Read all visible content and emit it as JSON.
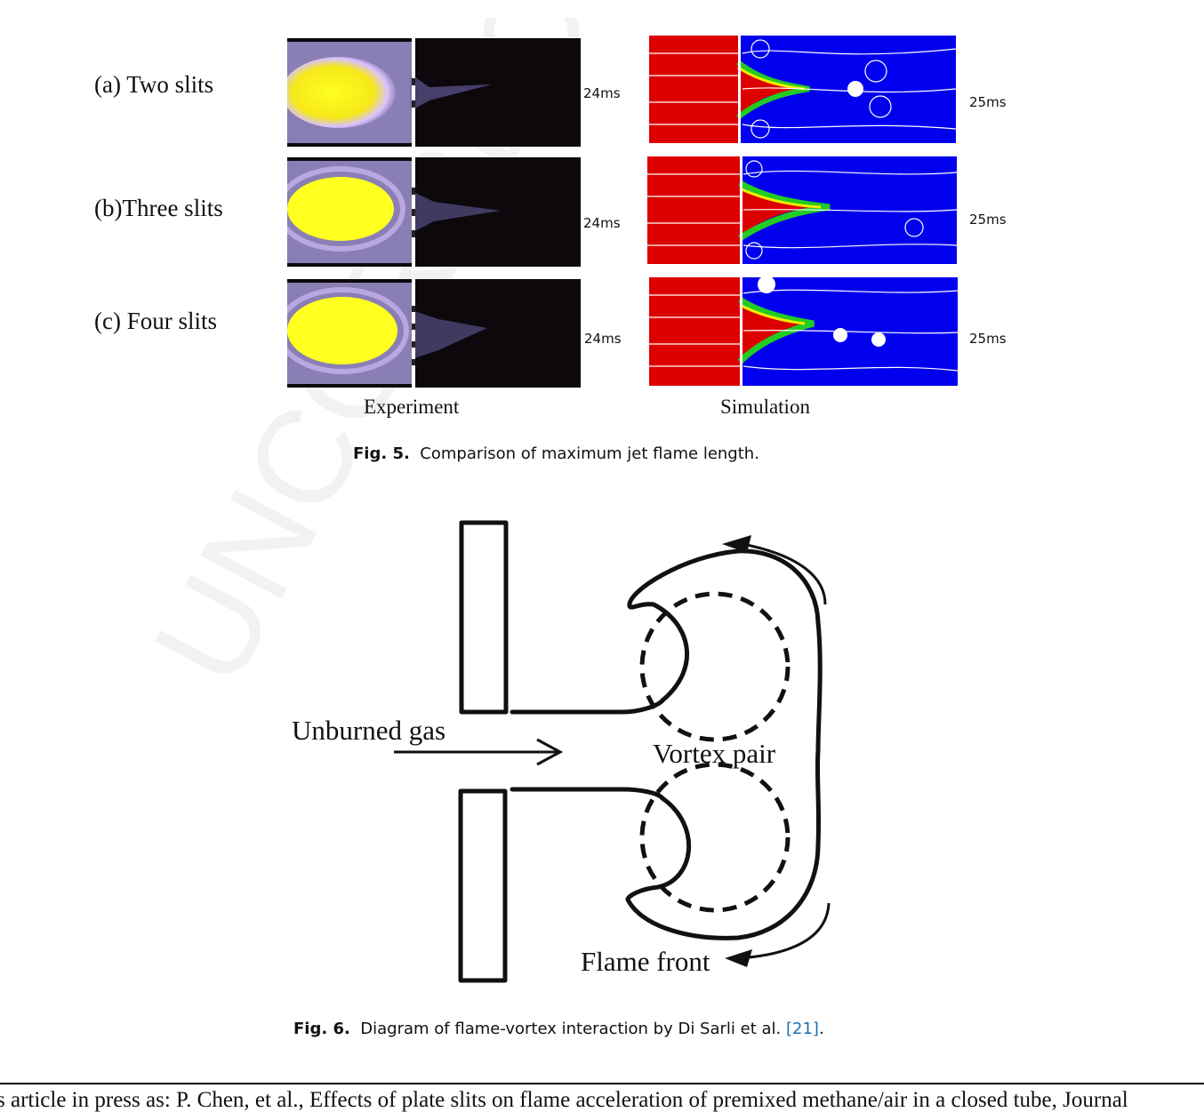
{
  "figure5": {
    "rows": [
      {
        "label": "(a) Two slits",
        "exp_time": "24ms",
        "sim_time": "25ms"
      },
      {
        "label": "(b)Three slits",
        "exp_time": "24ms",
        "sim_time": "25ms"
      },
      {
        "label": "(c) Four slits",
        "exp_time": "24ms",
        "sim_time": "25ms"
      }
    ],
    "col_experiment": "Experiment",
    "col_simulation": "Simulation",
    "caption_prefix": "Fig. 5.",
    "caption_text": "Comparison of maximum jet flame length."
  },
  "figure6": {
    "label_unburned": "Unburned gas",
    "label_vortex": "Vortex pair",
    "label_flame": "Flame front",
    "caption_prefix": "Fig. 6.",
    "caption_text": "Diagram of flame-vortex interaction by Di Sarli et al.",
    "caption_ref": "[21]",
    "caption_end": "."
  },
  "footer": {
    "line1": "s article in press as: P. Chen, et al., Effects of plate slits on flame acceleration of premixed methane/air in a closed tube, Journal"
  },
  "watermark_text": "UNCORRECTED"
}
